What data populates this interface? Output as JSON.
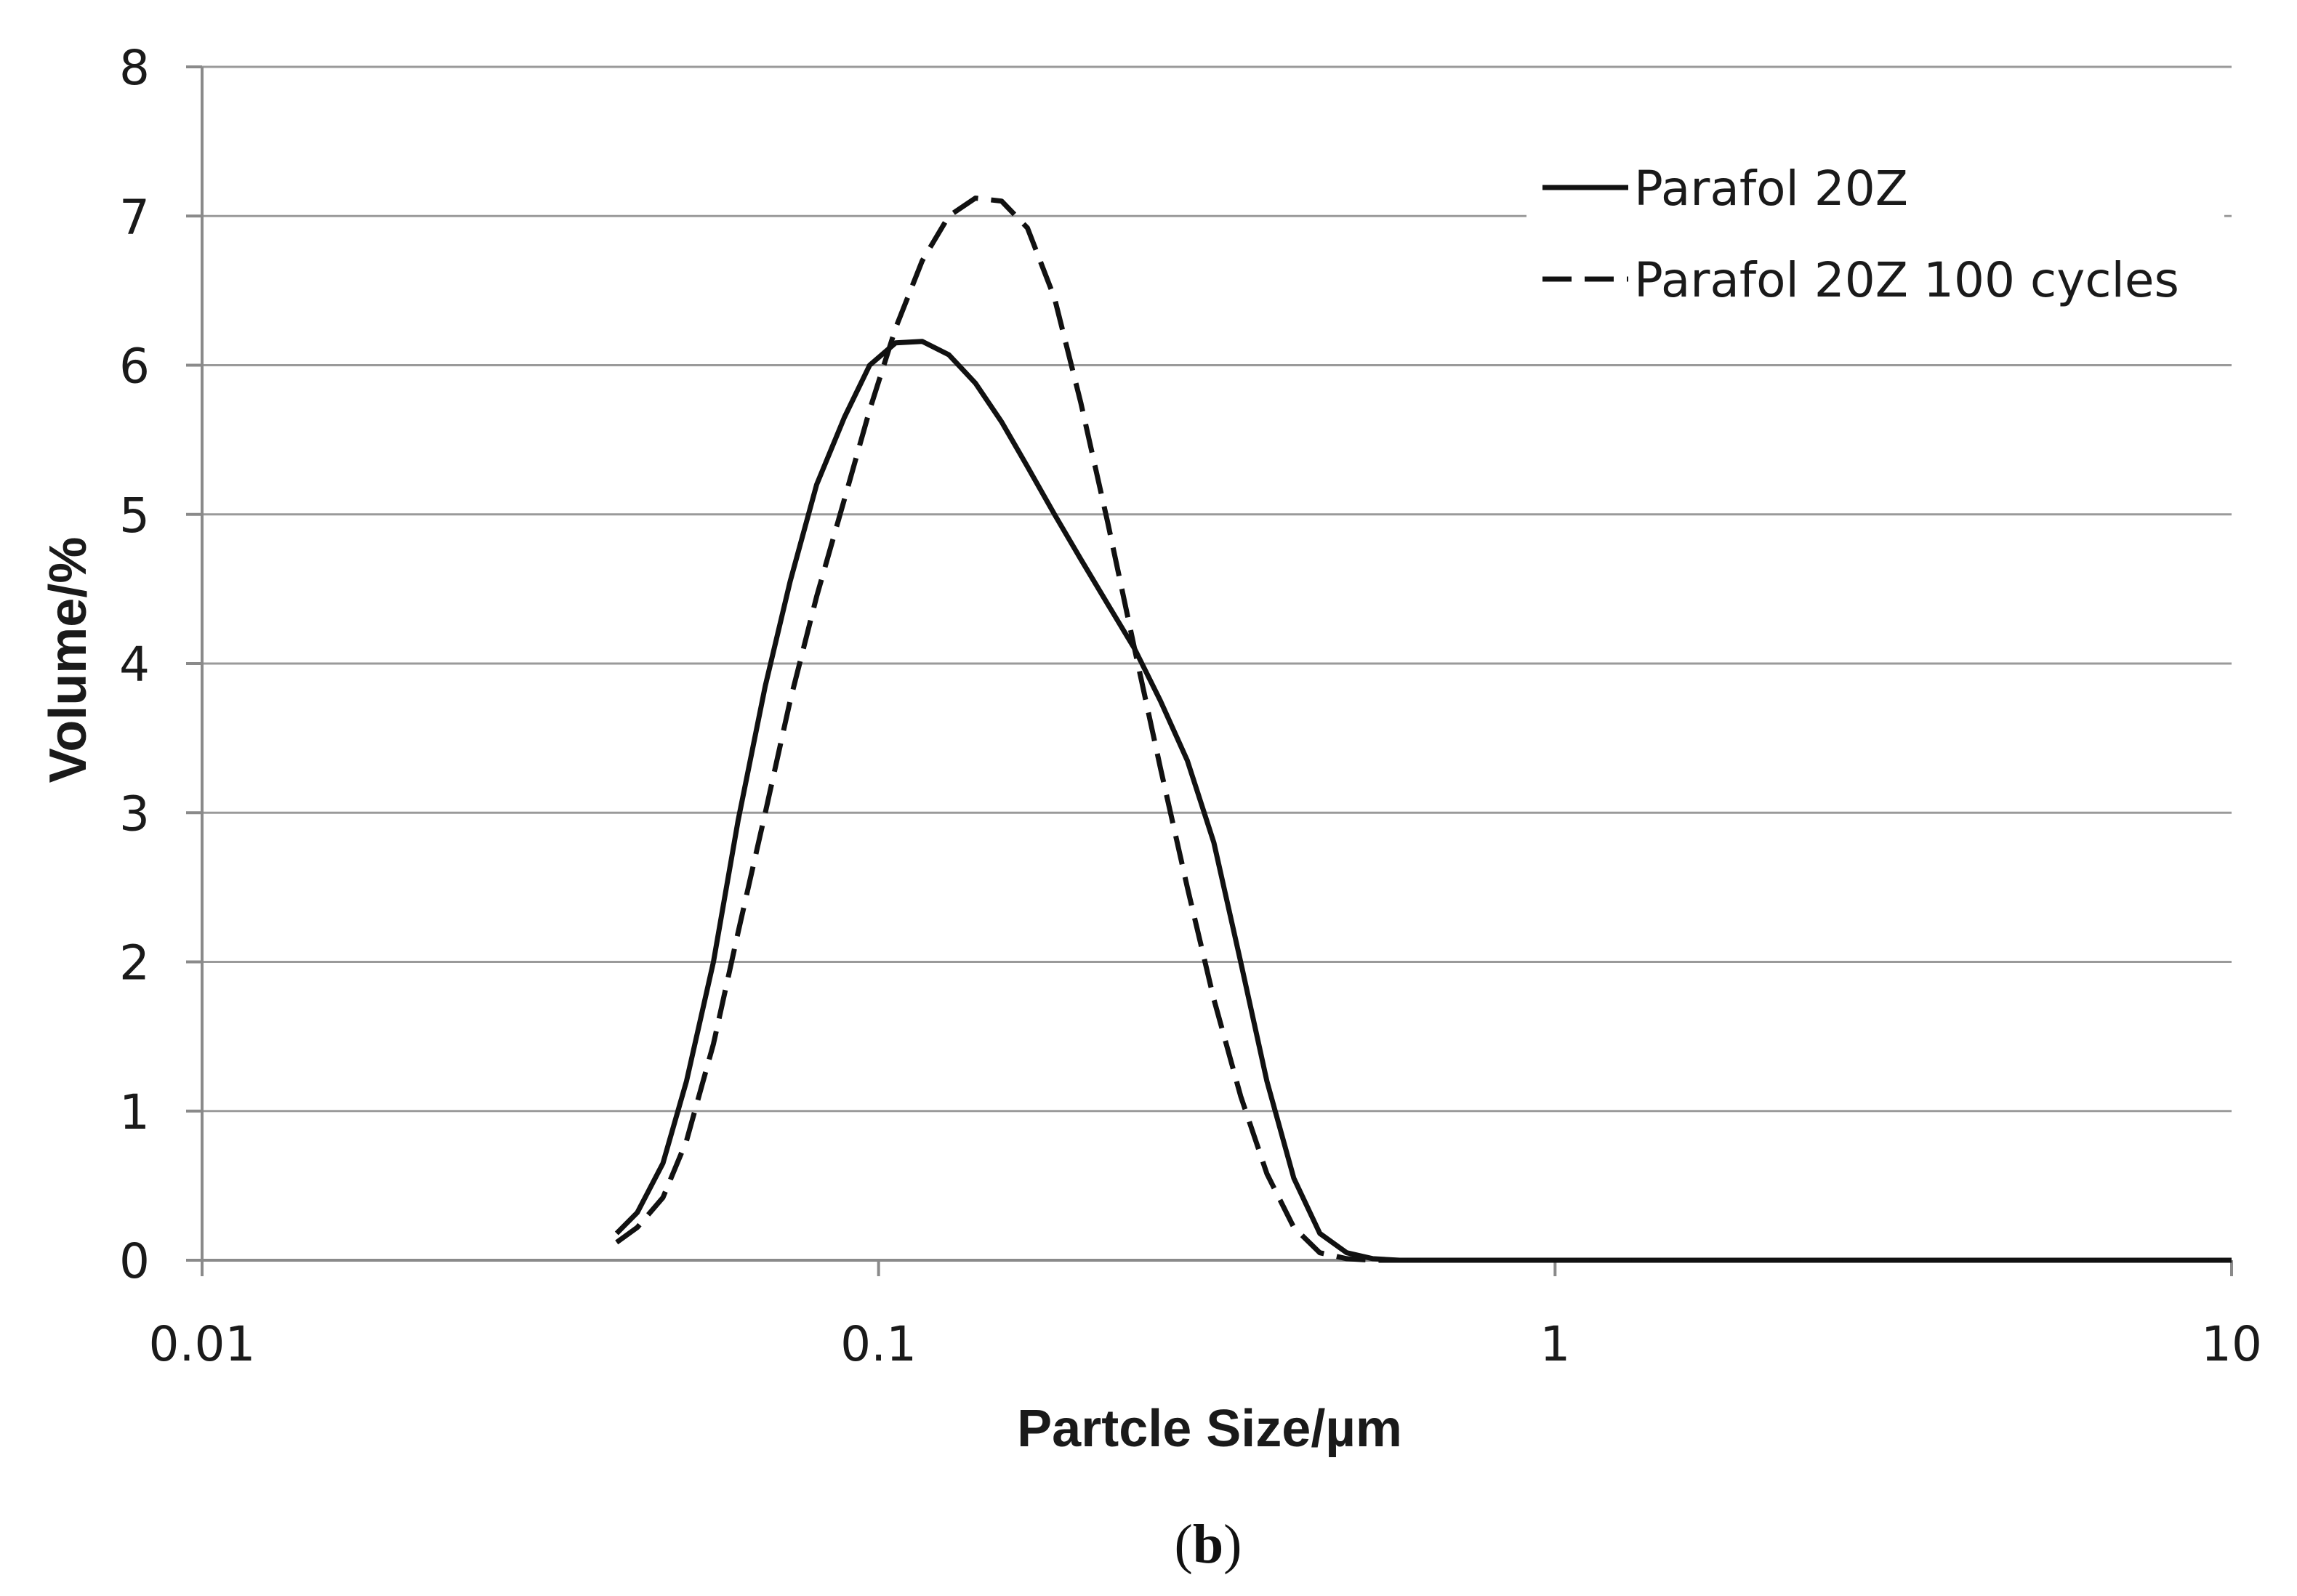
{
  "chart_data": {
    "type": "line",
    "title": "",
    "xlabel": "Partcle Size/µm",
    "ylabel": "Volume/%",
    "xscale": "log",
    "xlim": [
      0.01,
      10
    ],
    "ylim": [
      0,
      8
    ],
    "x_ticks": [
      0.01,
      0.1,
      1,
      10
    ],
    "x_tick_labels": [
      "0.01",
      "0.1",
      "1",
      "10"
    ],
    "y_ticks": [
      0,
      1,
      2,
      3,
      4,
      5,
      6,
      7,
      8
    ],
    "y_tick_labels": [
      "0",
      "1",
      "2",
      "3",
      "4",
      "5",
      "6",
      "7",
      "8"
    ],
    "grid": "horizontal",
    "legend_position": "top-right",
    "series": [
      {
        "name": "Parafol 20Z",
        "style": "solid",
        "color": "#111111",
        "x": [
          0.041,
          0.044,
          0.048,
          0.052,
          0.057,
          0.062,
          0.068,
          0.074,
          0.081,
          0.089,
          0.097,
          0.106,
          0.116,
          0.127,
          0.139,
          0.152,
          0.166,
          0.182,
          0.199,
          0.218,
          0.239,
          0.261,
          0.286,
          0.313,
          0.343,
          0.375,
          0.411,
          0.449,
          0.492,
          0.538,
          0.589,
          0.645,
          0.706,
          0.8,
          1.0,
          2.0,
          5.0,
          10.0
        ],
        "y": [
          0.18,
          0.32,
          0.65,
          1.2,
          2.0,
          2.95,
          3.85,
          4.55,
          5.2,
          5.65,
          6.0,
          6.15,
          6.16,
          6.07,
          5.88,
          5.62,
          5.32,
          5.0,
          4.7,
          4.4,
          4.1,
          3.75,
          3.35,
          2.8,
          2.0,
          1.2,
          0.55,
          0.18,
          0.05,
          0.01,
          0.0,
          0.0,
          0.0,
          0.0,
          0.0,
          0.0,
          0.0,
          0.0
        ]
      },
      {
        "name": "Parafol 20Z 100 cycles",
        "style": "dashed",
        "color": "#111111",
        "x": [
          0.041,
          0.044,
          0.048,
          0.052,
          0.057,
          0.062,
          0.068,
          0.074,
          0.081,
          0.089,
          0.097,
          0.106,
          0.116,
          0.127,
          0.139,
          0.152,
          0.166,
          0.182,
          0.199,
          0.218,
          0.239,
          0.261,
          0.286,
          0.313,
          0.343,
          0.375,
          0.411,
          0.449,
          0.492,
          0.538,
          0.589,
          0.645,
          0.706,
          0.8,
          1.0,
          2.0,
          5.0,
          10.0
        ],
        "y": [
          0.12,
          0.22,
          0.42,
          0.8,
          1.45,
          2.2,
          3.0,
          3.75,
          4.45,
          5.1,
          5.7,
          6.25,
          6.7,
          7.0,
          7.12,
          7.1,
          6.92,
          6.45,
          5.75,
          4.95,
          4.1,
          3.3,
          2.5,
          1.75,
          1.1,
          0.58,
          0.22,
          0.05,
          0.01,
          0.0,
          0.0,
          0.0,
          0.0,
          0.0,
          0.0,
          0.0,
          0.0,
          0.0
        ]
      }
    ]
  },
  "caption": {
    "open": "(",
    "letter": "b",
    "close": ")"
  }
}
